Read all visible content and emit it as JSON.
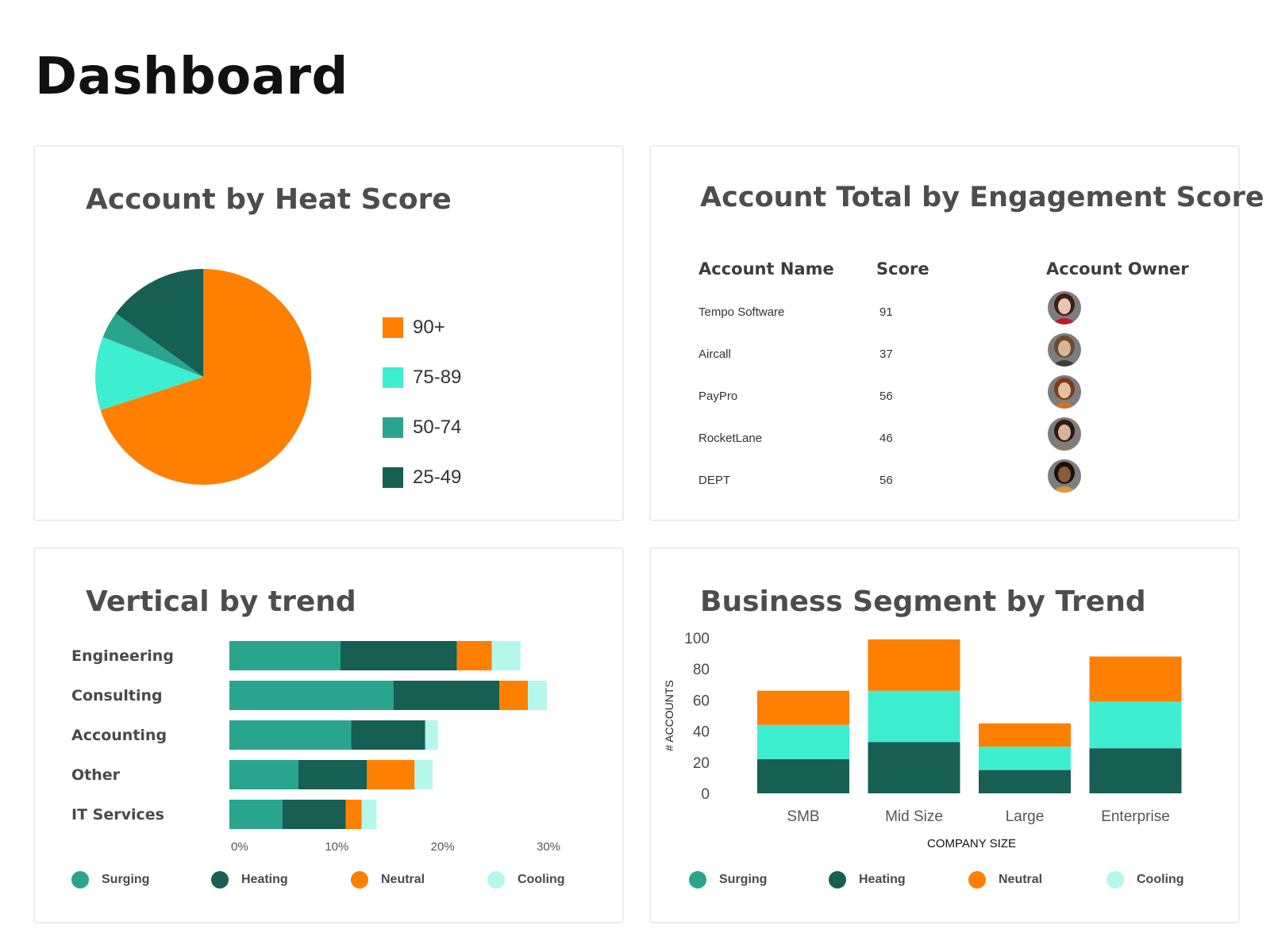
{
  "page": {
    "title": "Dashboard"
  },
  "colors": {
    "orange": "#ff7f00",
    "aqua": "#3eeed0",
    "teal": "#29a58e",
    "dark_teal": "#175f52",
    "light_aqua": "#b4f8eb",
    "text": "#4a4a4a"
  },
  "heat_card": {
    "title": "Account by Heat Score",
    "chart_data": {
      "type": "pie",
      "title": "Account by Heat Score",
      "labels": [
        "90+",
        "75-89",
        "50-74",
        "25-49"
      ],
      "values": [
        70,
        11,
        4,
        15
      ],
      "colors": [
        "#ff7f00",
        "#3eeed0",
        "#29a58e",
        "#175f52"
      ],
      "legend_position": "right"
    }
  },
  "engagement_card": {
    "title": "Account Total by Engagement Score",
    "columns": [
      "Account Name",
      "Score",
      "Account Owner"
    ],
    "rows": [
      {
        "name": "Tempo Software",
        "score": "91",
        "owner_avatar": "woman-smiling-red-avatar"
      },
      {
        "name": "Aircall",
        "score": "37",
        "owner_avatar": "man-smiling-avatar"
      },
      {
        "name": "PayPro",
        "score": "56",
        "owner_avatar": "woman-curly-hair-avatar"
      },
      {
        "name": "RocketLane",
        "score": "46",
        "owner_avatar": "woman-long-hair-avatar"
      },
      {
        "name": "DEPT",
        "score": "56",
        "owner_avatar": "woman-dark-skin-avatar"
      }
    ]
  },
  "vertical_card": {
    "title": "Vertical by trend",
    "chart_data": {
      "type": "bar",
      "orientation": "horizontal",
      "stacked": true,
      "title": "Vertical by trend",
      "categories": [
        "Engineering",
        "Consulting",
        "Accounting",
        "Other",
        "IT Services"
      ],
      "series": [
        {
          "name": "Surging",
          "values": [
            10.5,
            15.5,
            11.5,
            6.5,
            5
          ],
          "color": "#29a58e"
        },
        {
          "name": "Heating",
          "values": [
            11,
            10,
            7,
            6.5,
            6
          ],
          "color": "#175f52"
        },
        {
          "name": "Neutral",
          "values": [
            3.3,
            2.7,
            0,
            4.5,
            1.5
          ],
          "color": "#ff7f00"
        },
        {
          "name": "Cooling",
          "values": [
            2.7,
            1.8,
            1.2,
            1.7,
            1.4
          ],
          "color": "#b4f8eb"
        }
      ],
      "x_ticks": [
        "0%",
        "10%",
        "20%",
        "30%"
      ],
      "xlim": [
        0,
        30
      ],
      "legend_position": "bottom"
    }
  },
  "segment_card": {
    "title": "Business Segment by Trend",
    "chart_data": {
      "type": "bar",
      "orientation": "vertical",
      "stacked": true,
      "title": "Business Segment by Trend",
      "xlabel": "COMPANY SIZE",
      "ylabel": "# ACCOUNTS",
      "categories": [
        "SMB",
        "Mid Size",
        "Large",
        "Enterprise"
      ],
      "series": [
        {
          "name": "Heating",
          "values": [
            22,
            33,
            15,
            29
          ],
          "color": "#175f52"
        },
        {
          "name": "Cooling",
          "values": [
            22,
            33,
            15,
            30
          ],
          "color": "#3eeed0"
        },
        {
          "name": "Neutral",
          "values": [
            22,
            33,
            15,
            29
          ],
          "color": "#ff7f00"
        }
      ],
      "ylim": [
        0,
        100
      ],
      "y_ticks": [
        "0",
        "20",
        "40",
        "60",
        "80",
        "100"
      ],
      "legend_position": "bottom"
    }
  },
  "trend_legend": [
    {
      "name": "Surging",
      "color": "#29a58e"
    },
    {
      "name": "Heating",
      "color": "#175f52"
    },
    {
      "name": "Neutral",
      "color": "#ff7f00"
    },
    {
      "name": "Cooling",
      "color": "#b4f8eb"
    }
  ]
}
